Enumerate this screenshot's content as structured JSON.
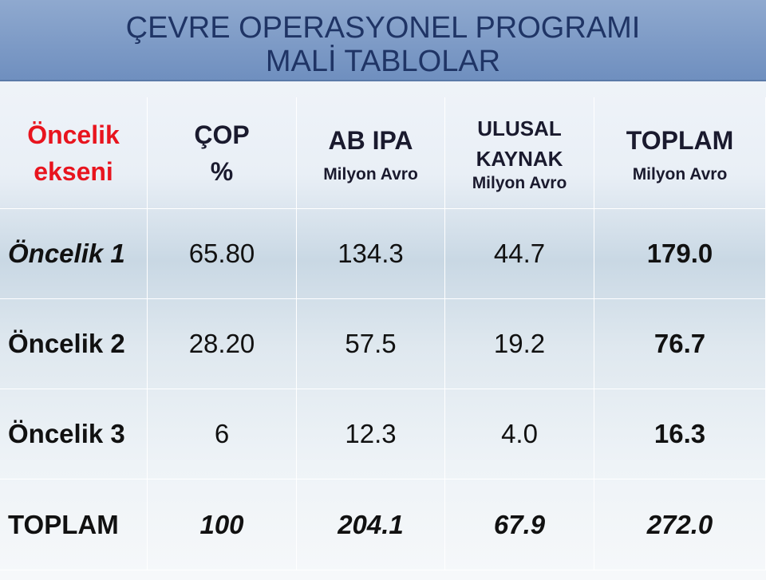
{
  "title": {
    "line1": "ÇEVRE OPERASYONEL PROGRAMI",
    "line2": "MALİ TABLOLAR"
  },
  "table": {
    "header": [
      {
        "lines": [
          "Öncelik",
          "ekseni"
        ]
      },
      {
        "lines": [
          "ÇOP",
          "%"
        ]
      },
      {
        "lines": [
          "AB IPA"
        ],
        "unit": "Milyon Avro"
      },
      {
        "lines": [
          "ULUSAL",
          "KAYNAK"
        ],
        "unit": "Milyon Avro"
      },
      {
        "lines": [
          "TOPLAM"
        ],
        "unit": "Milyon Avro"
      }
    ],
    "rows": [
      [
        "Öncelik 1",
        "65.80",
        "134.3",
        "44.7",
        "179.0"
      ],
      [
        "Öncelik 2",
        "28.20",
        "57.5",
        "19.2",
        "76.7"
      ],
      [
        "Öncelik 3",
        "6",
        "12.3",
        "4.0",
        "16.3"
      ],
      [
        "TOPLAM",
        "100",
        "204.1",
        "67.9",
        "272.0"
      ]
    ]
  }
}
